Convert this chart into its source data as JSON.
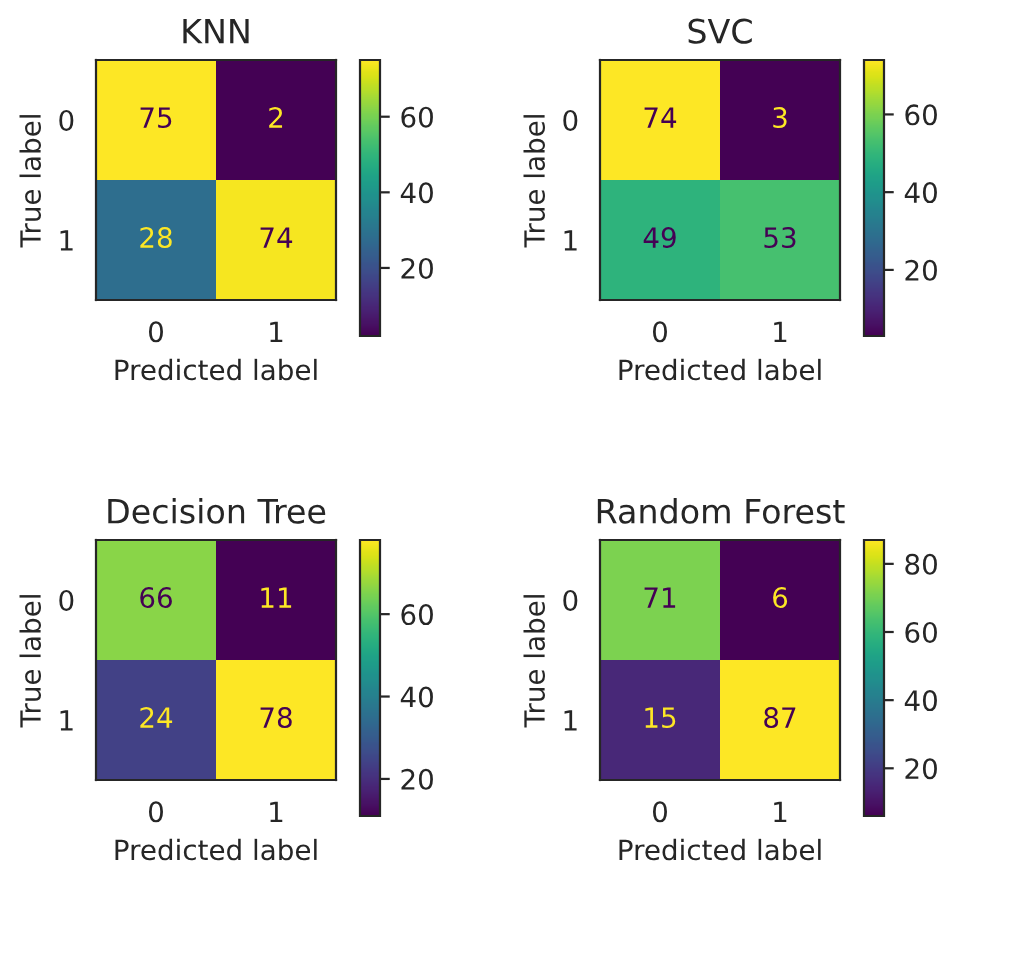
{
  "chart_data": [
    {
      "type": "heatmap",
      "title": "KNN",
      "xlabel": "Predicted label",
      "ylabel": "True label",
      "categories": [
        "0",
        "1"
      ],
      "y_categories": [
        "0",
        "1"
      ],
      "cells": [
        [
          75,
          2
        ],
        [
          28,
          74
        ]
      ],
      "clim": [
        2,
        75
      ],
      "cticks": [
        20,
        40,
        60
      ],
      "data_labels": true
    },
    {
      "type": "heatmap",
      "title": "SVC",
      "xlabel": "Predicted label",
      "ylabel": "True label",
      "categories": [
        "0",
        "1"
      ],
      "y_categories": [
        "0",
        "1"
      ],
      "cells": [
        [
          74,
          3
        ],
        [
          49,
          53
        ]
      ],
      "clim": [
        3,
        74
      ],
      "cticks": [
        20,
        40,
        60
      ],
      "data_labels": true
    },
    {
      "type": "heatmap",
      "title": "Decision Tree",
      "xlabel": "Predicted label",
      "ylabel": "True label",
      "categories": [
        "0",
        "1"
      ],
      "y_categories": [
        "0",
        "1"
      ],
      "cells": [
        [
          66,
          11
        ],
        [
          24,
          78
        ]
      ],
      "clim": [
        11,
        78
      ],
      "cticks": [
        20,
        40,
        60
      ],
      "data_labels": true
    },
    {
      "type": "heatmap",
      "title": "Random Forest",
      "xlabel": "Predicted label",
      "ylabel": "True label",
      "categories": [
        "0",
        "1"
      ],
      "y_categories": [
        "0",
        "1"
      ],
      "cells": [
        [
          71,
          6
        ],
        [
          15,
          87
        ]
      ],
      "clim": [
        6,
        87
      ],
      "cticks": [
        20,
        40,
        60,
        80
      ],
      "data_labels": true
    }
  ]
}
